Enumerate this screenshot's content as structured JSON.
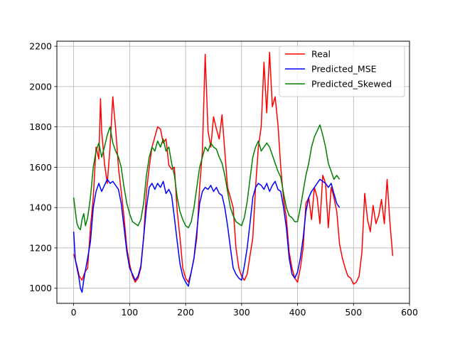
{
  "chart_data": {
    "type": "line",
    "title": "",
    "xlabel": "",
    "ylabel": "",
    "xlim": [
      -30,
      600
    ],
    "ylim": [
      925,
      2225
    ],
    "x_ticks": [
      0,
      100,
      200,
      300,
      400,
      500,
      600
    ],
    "y_ticks": [
      1000,
      1200,
      1400,
      1600,
      1800,
      2000,
      2200
    ],
    "grid": true,
    "legend_position": "top-right",
    "series": [
      {
        "name": "Real",
        "color": "#ff0000",
        "x": [
          0,
          5,
          10,
          15,
          20,
          25,
          30,
          35,
          40,
          45,
          48,
          50,
          55,
          60,
          65,
          70,
          72,
          75,
          80,
          85,
          90,
          95,
          100,
          105,
          110,
          115,
          120,
          125,
          130,
          135,
          140,
          145,
          150,
          155,
          160,
          165,
          170,
          175,
          180,
          185,
          190,
          195,
          200,
          205,
          210,
          215,
          220,
          225,
          230,
          235,
          240,
          245,
          250,
          255,
          260,
          265,
          270,
          275,
          280,
          285,
          290,
          295,
          300,
          305,
          310,
          315,
          320,
          325,
          330,
          335,
          340,
          345,
          350,
          355,
          360,
          365,
          370,
          375,
          380,
          385,
          390,
          395,
          400,
          405,
          410,
          415,
          420,
          425,
          430,
          435,
          440,
          445,
          450,
          455,
          460,
          465,
          470,
          475,
          480,
          485,
          490,
          495,
          500,
          505,
          510,
          515,
          520,
          525,
          530,
          535,
          540,
          545,
          550,
          555,
          560,
          565,
          570
        ],
        "values": [
          1170,
          1120,
          1060,
          1040,
          1080,
          1100,
          1300,
          1450,
          1700,
          1640,
          1940,
          1780,
          1620,
          1520,
          1700,
          1950,
          1880,
          1790,
          1600,
          1480,
          1350,
          1200,
          1120,
          1060,
          1030,
          1050,
          1100,
          1250,
          1480,
          1600,
          1700,
          1750,
          1800,
          1790,
          1720,
          1740,
          1610,
          1590,
          1600,
          1380,
          1250,
          1100,
          1050,
          1030,
          1080,
          1150,
          1250,
          1500,
          1680,
          2160,
          1780,
          1700,
          1850,
          1790,
          1740,
          1860,
          1680,
          1500,
          1450,
          1400,
          1200,
          1100,
          1060,
          1040,
          1070,
          1160,
          1250,
          1500,
          1700,
          1800,
          2120,
          1870,
          2170,
          1900,
          1950,
          1810,
          1600,
          1440,
          1350,
          1180,
          1100,
          1050,
          1030,
          1100,
          1200,
          1420,
          1450,
          1340,
          1500,
          1450,
          1320,
          1560,
          1520,
          1300,
          1500,
          1450,
          1380,
          1220,
          1150,
          1100,
          1060,
          1050,
          1020,
          1030,
          1060,
          1180,
          1470,
          1340,
          1280,
          1410,
          1320,
          1360,
          1440,
          1320,
          1540,
          1330,
          1160
        ]
      },
      {
        "name": "Predicted_MSE",
        "color": "#0000ff",
        "x": [
          0,
          3,
          6,
          9,
          12,
          15,
          18,
          21,
          25,
          30,
          35,
          40,
          45,
          50,
          55,
          60,
          65,
          70,
          75,
          80,
          85,
          90,
          95,
          100,
          105,
          110,
          115,
          120,
          125,
          130,
          135,
          140,
          145,
          150,
          155,
          160,
          165,
          170,
          175,
          180,
          185,
          190,
          195,
          200,
          205,
          210,
          215,
          220,
          225,
          230,
          235,
          240,
          245,
          250,
          255,
          260,
          265,
          270,
          275,
          280,
          285,
          290,
          295,
          300,
          305,
          310,
          315,
          320,
          325,
          330,
          335,
          340,
          345,
          350,
          355,
          360,
          365,
          370,
          375,
          380,
          385,
          390,
          395,
          400,
          405,
          410,
          415,
          420,
          425,
          430,
          435,
          440,
          445,
          450,
          455,
          460,
          465,
          470,
          475
        ],
        "values": [
          1280,
          1140,
          1100,
          1060,
          1000,
          980,
          1040,
          1090,
          1150,
          1230,
          1400,
          1480,
          1520,
          1480,
          1510,
          1540,
          1520,
          1530,
          1510,
          1490,
          1420,
          1300,
          1180,
          1100,
          1070,
          1040,
          1060,
          1110,
          1250,
          1400,
          1500,
          1520,
          1490,
          1520,
          1500,
          1530,
          1470,
          1490,
          1460,
          1350,
          1230,
          1120,
          1060,
          1030,
          1010,
          1080,
          1150,
          1280,
          1420,
          1480,
          1500,
          1490,
          1510,
          1480,
          1500,
          1470,
          1460,
          1400,
          1310,
          1200,
          1100,
          1070,
          1050,
          1040,
          1110,
          1200,
          1320,
          1450,
          1500,
          1520,
          1510,
          1490,
          1520,
          1480,
          1510,
          1530,
          1490,
          1480,
          1400,
          1300,
          1150,
          1070,
          1050,
          1080,
          1150,
          1250,
          1380,
          1450,
          1480,
          1500,
          1520,
          1540,
          1530,
          1520,
          1500,
          1520,
          1470,
          1420,
          1400
        ]
      },
      {
        "name": "Predicted_Skewed",
        "color": "#008000",
        "x": [
          0,
          3,
          6,
          9,
          12,
          15,
          18,
          21,
          25,
          30,
          35,
          40,
          45,
          50,
          55,
          60,
          65,
          70,
          75,
          80,
          85,
          90,
          95,
          100,
          105,
          110,
          115,
          120,
          125,
          130,
          135,
          140,
          145,
          150,
          155,
          160,
          165,
          170,
          175,
          180,
          185,
          190,
          195,
          200,
          205,
          210,
          215,
          220,
          225,
          230,
          235,
          240,
          245,
          250,
          255,
          260,
          265,
          270,
          275,
          280,
          285,
          290,
          295,
          300,
          305,
          310,
          315,
          320,
          325,
          330,
          335,
          340,
          345,
          350,
          355,
          360,
          365,
          370,
          375,
          380,
          385,
          390,
          395,
          400,
          405,
          410,
          415,
          420,
          425,
          430,
          435,
          440,
          445,
          450,
          455,
          460,
          465,
          470,
          475
        ],
        "values": [
          1450,
          1380,
          1320,
          1300,
          1290,
          1340,
          1370,
          1310,
          1350,
          1450,
          1600,
          1680,
          1720,
          1650,
          1700,
          1760,
          1800,
          1720,
          1680,
          1650,
          1600,
          1500,
          1420,
          1370,
          1330,
          1320,
          1310,
          1340,
          1420,
          1560,
          1650,
          1700,
          1680,
          1730,
          1700,
          1740,
          1680,
          1700,
          1620,
          1560,
          1450,
          1380,
          1340,
          1310,
          1300,
          1330,
          1400,
          1500,
          1600,
          1650,
          1700,
          1680,
          1720,
          1700,
          1690,
          1650,
          1620,
          1560,
          1480,
          1400,
          1360,
          1330,
          1320,
          1310,
          1350,
          1430,
          1540,
          1650,
          1700,
          1730,
          1680,
          1700,
          1720,
          1700,
          1660,
          1620,
          1580,
          1550,
          1470,
          1400,
          1360,
          1350,
          1330,
          1330,
          1400,
          1480,
          1560,
          1620,
          1700,
          1750,
          1780,
          1810,
          1760,
          1700,
          1620,
          1580,
          1540,
          1560,
          1540
        ]
      }
    ]
  }
}
